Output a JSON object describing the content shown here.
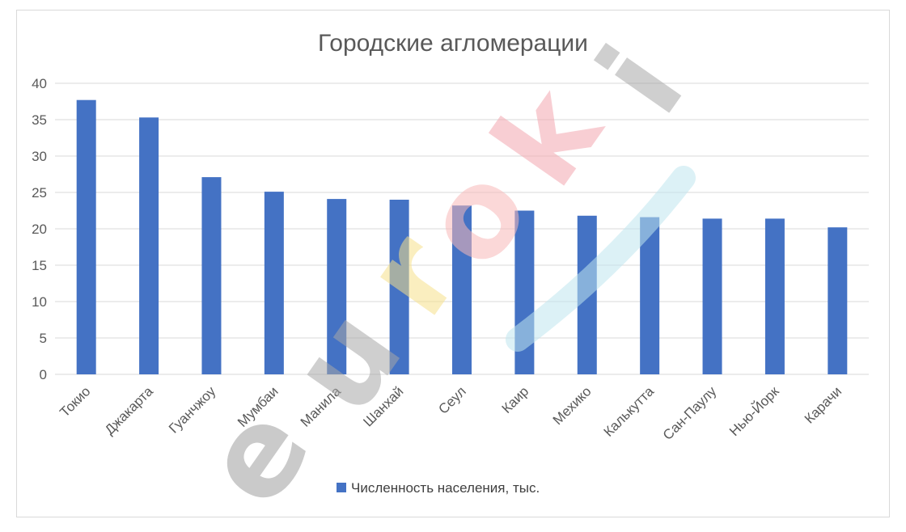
{
  "chart_data": {
    "type": "bar",
    "title": "Городские агломерации",
    "categories": [
      "Токио",
      "Джакарта",
      "Гуанчжоу",
      "Мумбаи",
      "Манила",
      "Шанхай",
      "Сеул",
      "Каир",
      "Мехико",
      "Калькутта",
      "Сан-Паулу",
      "Нью-Йорк",
      "Карачи"
    ],
    "series": [
      {
        "name": "Численность населения, тыс.",
        "values": [
          37.7,
          35.3,
          27.1,
          25.1,
          24.1,
          24.0,
          23.2,
          22.5,
          21.8,
          21.6,
          21.4,
          21.4,
          20.2
        ]
      }
    ],
    "yticks": [
      "0",
      "5",
      "10",
      "15",
      "20",
      "25",
      "30",
      "35",
      "40"
    ],
    "ylim": [
      0,
      40
    ],
    "grid": true,
    "legend_position": "bottom",
    "colors": {
      "bar": "#4472C4",
      "grid": "#d9d9d9",
      "text": "#595959"
    }
  },
  "watermark": {
    "text": "euroki"
  }
}
